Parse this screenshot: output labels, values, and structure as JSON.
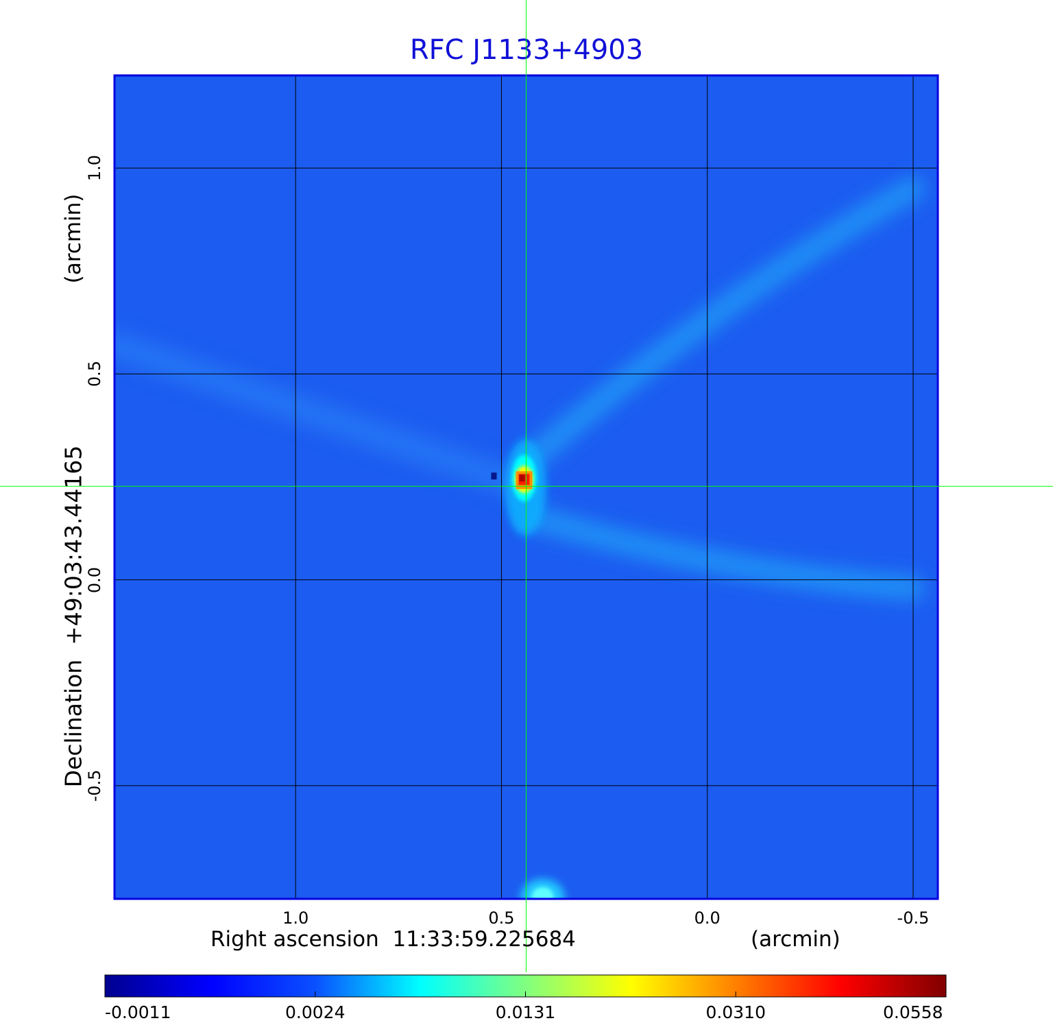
{
  "chart_data": {
    "type": "heatmap",
    "title": "RFC J1133+4903",
    "xlabel": "Right ascension  11:33:59.225684",
    "xlabel_unit": "(arcmin)",
    "ylabel": "Declination  +49:03:43.44165",
    "ylabel_unit": "(arcmin)",
    "x_ticks": [
      "1.0",
      "0.5",
      "0.0",
      "-0.5"
    ],
    "x_tick_values": [
      1.0,
      0.5,
      0.0,
      -0.5
    ],
    "y_ticks": [
      "1.0",
      "0.5",
      "0.0",
      "-0.5"
    ],
    "y_tick_values": [
      1.0,
      0.5,
      0.0,
      -0.5
    ],
    "xlim": [
      1.44,
      -0.56
    ],
    "ylim": [
      -0.775,
      1.225
    ],
    "grid": true,
    "crosshair": {
      "x": 0.44,
      "y": 0.227
    },
    "colormap": "jet",
    "colorbar_ticks": [
      "-0.0011",
      "0.0024",
      "0.0131",
      "0.0310",
      "0.0558"
    ],
    "colorbar_stops": [
      "#00008f",
      "#0000ff",
      "#0a50ff",
      "#00ffff",
      "#80ff80",
      "#ffff00",
      "#ff8000",
      "#ff0000",
      "#800000"
    ],
    "peak": {
      "x": 0.44,
      "y": 0.227,
      "value": 0.0558
    },
    "features": [
      {
        "kind": "compact-source",
        "x": 0.44,
        "y": 0.227,
        "peak": 0.0558
      },
      {
        "kind": "secondary-source",
        "x": 0.4,
        "y": -0.74,
        "peak": 0.006
      },
      {
        "kind": "sidelobe-arc",
        "from": [
          0.42,
          0.3
        ],
        "to": [
          -0.5,
          0.95
        ]
      },
      {
        "kind": "sidelobe-arc",
        "from": [
          0.42,
          0.15
        ],
        "to": [
          -0.5,
          -0.02
        ]
      },
      {
        "kind": "sidelobe-arc",
        "from": [
          0.48,
          0.24
        ],
        "to": [
          1.44,
          0.57
        ]
      }
    ],
    "colors": {
      "title": "#1010d8",
      "grid": "#000000",
      "crosshair": "#00ff00",
      "frame": "#0000e0",
      "background": "#1c5cf0"
    }
  }
}
